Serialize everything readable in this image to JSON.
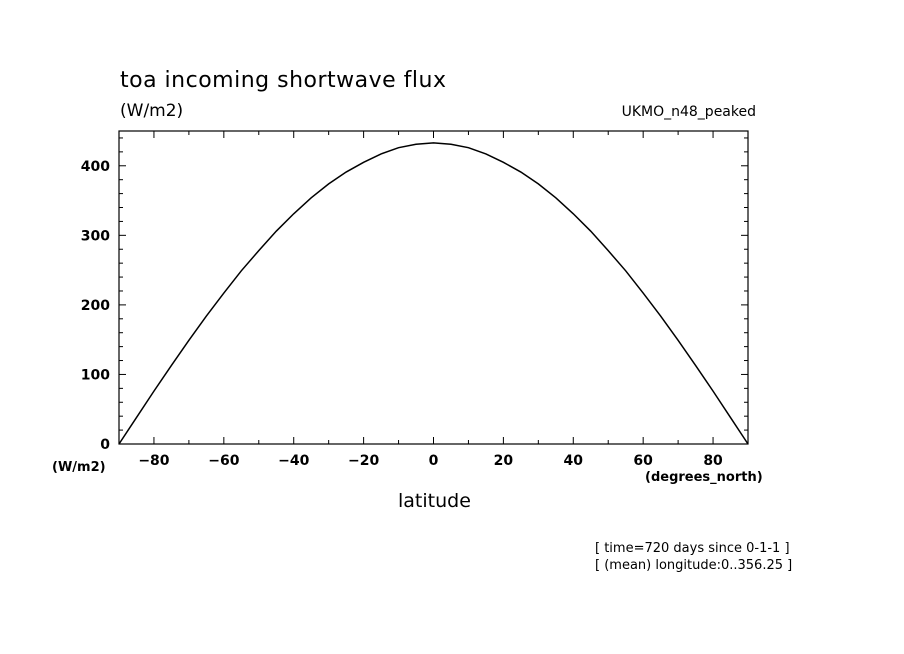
{
  "title": "toa incoming shortwave flux",
  "subtitle": "(W/m2)",
  "dataset": "UKMO_n48_peaked",
  "y_unit_label": "(W/m2)",
  "x_unit_label": "(degrees_north)",
  "xlabel": "latitude",
  "notes": [
    "[ time=720 days since 0-1-1 ]",
    "[ (mean) longitude:0..356.25 ]"
  ],
  "chart_data": {
    "type": "line",
    "title": "toa incoming shortwave flux",
    "xlabel": "latitude",
    "ylabel": "(W/m2)",
    "xlim": [
      -90,
      90
    ],
    "ylim": [
      0,
      450
    ],
    "x_ticks": [
      -80,
      -60,
      -40,
      -20,
      0,
      20,
      40,
      60,
      80
    ],
    "y_ticks": [
      0,
      100,
      200,
      300,
      400
    ],
    "grid": false,
    "series": [
      {
        "x": [
          -90,
          -85,
          -80,
          -75,
          -70,
          -65,
          -60,
          -55,
          -50,
          -45,
          -40,
          -35,
          -30,
          -25,
          -20,
          -15,
          -10,
          -5,
          0,
          5,
          10,
          15,
          20,
          25,
          30,
          35,
          40,
          45,
          50,
          55,
          60,
          65,
          70,
          75,
          80,
          85,
          90
        ],
        "y": [
          0,
          38,
          76,
          113,
          149,
          184,
          217,
          249,
          278,
          306,
          331,
          354,
          374,
          391,
          405,
          417,
          426,
          431,
          433,
          431,
          426,
          417,
          405,
          391,
          374,
          354,
          331,
          306,
          278,
          249,
          217,
          184,
          149,
          113,
          76,
          38,
          0
        ]
      }
    ]
  }
}
